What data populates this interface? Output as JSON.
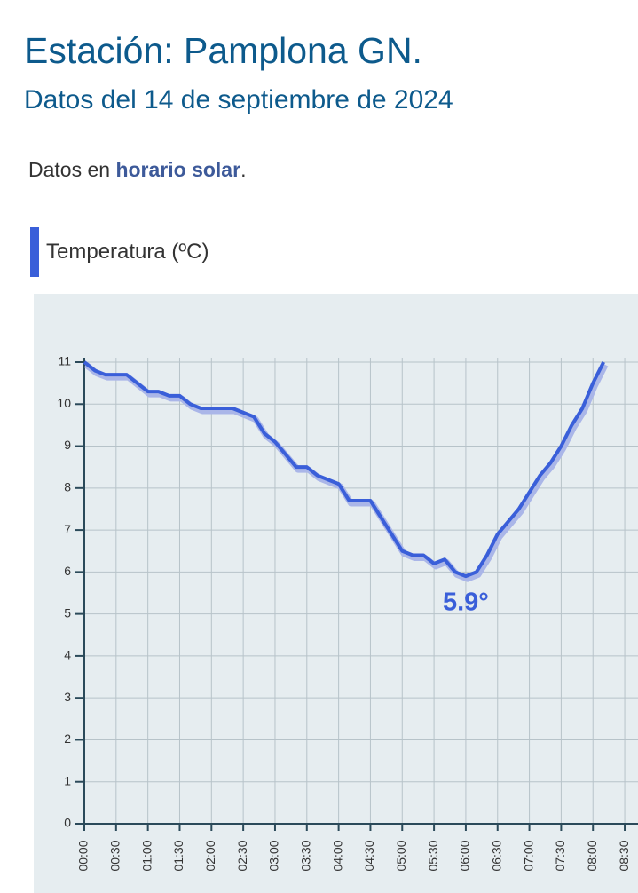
{
  "header": {
    "title": "Estación: Pamplona GN.",
    "subtitle": "Datos del 14 de septiembre de 2024",
    "note_prefix": "Datos en",
    "note_bold": "horario solar",
    "note_suffix": "."
  },
  "section": {
    "title": "Temperatura (ºC)"
  },
  "chart_data": {
    "type": "line",
    "x": [
      0,
      10,
      20,
      30,
      40,
      50,
      60,
      70,
      80,
      90,
      100,
      110,
      120,
      130,
      140,
      150,
      160,
      170,
      180,
      190,
      200,
      210,
      220,
      230,
      240,
      250,
      260,
      270,
      280,
      290,
      300,
      310,
      320,
      330,
      340,
      350,
      360,
      370,
      380,
      390,
      400,
      410,
      420,
      430,
      440,
      450,
      460,
      470,
      480,
      490
    ],
    "series": [
      {
        "name": "Temperatura",
        "color": "#3a5fd9",
        "values": [
          11,
          10.8,
          10.7,
          10.7,
          10.7,
          10.5,
          10.3,
          10.3,
          10.2,
          10.2,
          10.0,
          9.9,
          9.9,
          9.9,
          9.9,
          9.8,
          9.7,
          9.3,
          9.1,
          8.8,
          8.5,
          8.5,
          8.3,
          8.2,
          8.1,
          7.7,
          7.7,
          7.7,
          7.3,
          6.9,
          6.5,
          6.4,
          6.4,
          6.2,
          6.3,
          6.0,
          5.9,
          6.0,
          6.4,
          6.9,
          7.2,
          7.5,
          7.9,
          8.3,
          8.6,
          9.0,
          9.5,
          9.9,
          10.5,
          11.0
        ]
      }
    ],
    "annotation": {
      "x": 360,
      "y": 5.9,
      "label": "5.9°"
    },
    "xlim": [
      0,
      520
    ],
    "xticks": [
      {
        "value": 0,
        "label": "00:00"
      },
      {
        "value": 30,
        "label": "00:30"
      },
      {
        "value": 60,
        "label": "01:00"
      },
      {
        "value": 90,
        "label": "01:30"
      },
      {
        "value": 120,
        "label": "02:00"
      },
      {
        "value": 150,
        "label": "02:30"
      },
      {
        "value": 180,
        "label": "03:00"
      },
      {
        "value": 210,
        "label": "03:30"
      },
      {
        "value": 240,
        "label": "04:00"
      },
      {
        "value": 270,
        "label": "04:30"
      },
      {
        "value": 300,
        "label": "05:00"
      },
      {
        "value": 330,
        "label": "05:30"
      },
      {
        "value": 360,
        "label": "06:00"
      },
      {
        "value": 390,
        "label": "06:30"
      },
      {
        "value": 420,
        "label": "07:00"
      },
      {
        "value": 450,
        "label": "07:30"
      },
      {
        "value": 480,
        "label": "08:00"
      },
      {
        "value": 510,
        "label": "08:30"
      }
    ],
    "ylim": [
      0,
      11
    ],
    "yticks": [
      0,
      1,
      2,
      3,
      4,
      5,
      6,
      7,
      8,
      9,
      10,
      11
    ],
    "grid": true
  }
}
